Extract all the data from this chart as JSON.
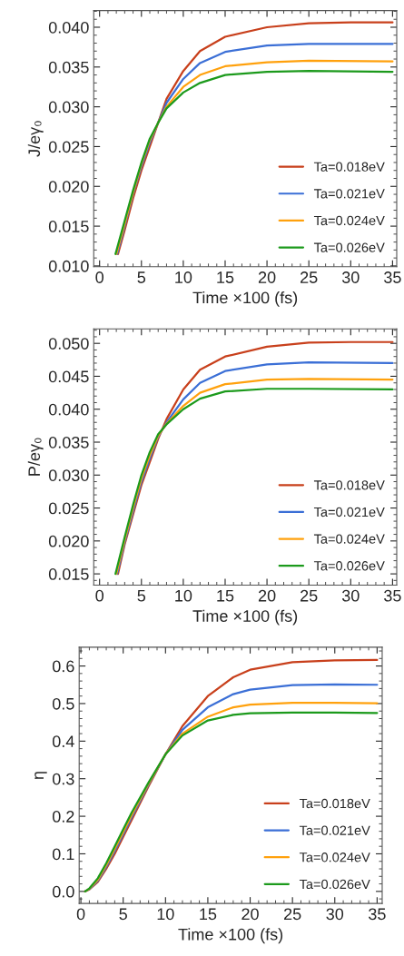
{
  "chart_data": [
    {
      "type": "line",
      "xlabel": "Time ×100 (fs)",
      "ylabel": "J/eγ₀",
      "xlim": [
        -0.7,
        35.5
      ],
      "ylim": [
        0.0099,
        0.0421
      ],
      "xticks": [
        0,
        5,
        10,
        15,
        20,
        25,
        30,
        35
      ],
      "yticks": [
        {
          "value": 0.01,
          "label": "0.010"
        },
        {
          "value": 0.015,
          "label": "0.015"
        },
        {
          "value": 0.02,
          "label": "0.020"
        },
        {
          "value": 0.025,
          "label": "0.025"
        },
        {
          "value": 0.03,
          "label": "0.030"
        },
        {
          "value": 0.035,
          "label": "0.035"
        },
        {
          "value": 0.04,
          "label": "0.040"
        }
      ],
      "legend": "bottom right",
      "grid": false,
      "series": [
        {
          "name": "Ta=0.018eV",
          "color": "#c8401c",
          "x": [
            2.2,
            3,
            4,
            5,
            6,
            7,
            8,
            10,
            12,
            15,
            20,
            25,
            30,
            35
          ],
          "values": [
            0.0115,
            0.0145,
            0.0185,
            0.022,
            0.025,
            0.028,
            0.031,
            0.0345,
            0.037,
            0.0388,
            0.04,
            0.0405,
            0.0406,
            0.0406
          ]
        },
        {
          "name": "Ta=0.021eV",
          "color": "#3b6fd6",
          "x": [
            2.1,
            3,
            4,
            5,
            6,
            7,
            8,
            10,
            12,
            15,
            20,
            25,
            35
          ],
          "values": [
            0.0115,
            0.015,
            0.019,
            0.0225,
            0.0255,
            0.028,
            0.0305,
            0.0335,
            0.0355,
            0.0369,
            0.0377,
            0.0379,
            0.0379
          ]
        },
        {
          "name": "Ta=0.024eV",
          "color": "#ffa10d",
          "x": [
            2.0,
            3,
            4,
            5,
            6,
            7,
            8,
            10,
            12,
            15,
            20,
            25,
            35
          ],
          "values": [
            0.0115,
            0.0153,
            0.0192,
            0.0228,
            0.0258,
            0.028,
            0.03,
            0.0325,
            0.034,
            0.0351,
            0.0356,
            0.0358,
            0.0357
          ]
        },
        {
          "name": "Ta=0.026eV",
          "color": "#1c9a1c",
          "x": [
            1.9,
            3,
            4,
            5,
            6,
            7,
            8,
            10,
            12,
            15,
            20,
            25,
            35
          ],
          "values": [
            0.0115,
            0.0157,
            0.0195,
            0.023,
            0.026,
            0.028,
            0.0298,
            0.0318,
            0.033,
            0.034,
            0.0344,
            0.0345,
            0.0344
          ]
        }
      ]
    },
    {
      "type": "line",
      "xlabel": "Time ×100 (fs)",
      "ylabel": "P/eγ₀",
      "xlim": [
        -0.7,
        35.5
      ],
      "ylim": [
        0.0133,
        0.0522
      ],
      "xticks": [
        0,
        5,
        10,
        15,
        20,
        25,
        30,
        35
      ],
      "yticks": [
        {
          "value": 0.015,
          "label": "0.015"
        },
        {
          "value": 0.02,
          "label": "0.020"
        },
        {
          "value": 0.025,
          "label": "0.025"
        },
        {
          "value": 0.03,
          "label": "0.030"
        },
        {
          "value": 0.035,
          "label": "0.035"
        },
        {
          "value": 0.04,
          "label": "0.040"
        },
        {
          "value": 0.045,
          "label": "0.045"
        },
        {
          "value": 0.05,
          "label": "0.050"
        }
      ],
      "legend": "bottom right",
      "grid": false,
      "series": [
        {
          "name": "Ta=0.018eV",
          "color": "#c8401c",
          "x": [
            2.2,
            3,
            4,
            5,
            6,
            7,
            8,
            10,
            12,
            15,
            20,
            25,
            30,
            35
          ],
          "values": [
            0.015,
            0.0195,
            0.024,
            0.0285,
            0.032,
            0.0355,
            0.0385,
            0.043,
            0.046,
            0.048,
            0.0495,
            0.0501,
            0.0502,
            0.0502
          ]
        },
        {
          "name": "Ta=0.021eV",
          "color": "#3b6fd6",
          "x": [
            2.1,
            3,
            4,
            5,
            6,
            7,
            8,
            10,
            12,
            15,
            20,
            25,
            35
          ],
          "values": [
            0.015,
            0.0198,
            0.0245,
            0.029,
            0.0325,
            0.0358,
            0.038,
            0.0415,
            0.044,
            0.0458,
            0.0468,
            0.0471,
            0.047
          ]
        },
        {
          "name": "Ta=0.024eV",
          "color": "#ffa10d",
          "x": [
            2.0,
            3,
            4,
            5,
            6,
            7,
            8,
            10,
            12,
            15,
            20,
            25,
            35
          ],
          "values": [
            0.015,
            0.0202,
            0.025,
            0.0295,
            0.033,
            0.036,
            0.0378,
            0.0405,
            0.0425,
            0.0438,
            0.0445,
            0.0446,
            0.0445
          ]
        },
        {
          "name": "Ta=0.026eV",
          "color": "#1c9a1c",
          "x": [
            1.9,
            3,
            4,
            5,
            6,
            7,
            8,
            10,
            12,
            15,
            20,
            25,
            35
          ],
          "values": [
            0.015,
            0.0206,
            0.0255,
            0.03,
            0.0335,
            0.0362,
            0.0377,
            0.04,
            0.0416,
            0.0427,
            0.0431,
            0.0431,
            0.043
          ]
        }
      ]
    },
    {
      "type": "line",
      "xlabel": "Time ×100 (fs)",
      "ylabel": "η",
      "xlim": [
        -0.2,
        35.6
      ],
      "ylim": [
        -0.032,
        0.65
      ],
      "xticks": [
        0,
        5,
        10,
        15,
        20,
        25,
        30,
        35
      ],
      "yticks": [
        {
          "value": 0,
          "label": "0.0"
        },
        {
          "value": 0.1,
          "label": "0.1"
        },
        {
          "value": 0.2,
          "label": "0.2"
        },
        {
          "value": 0.3,
          "label": "0.3"
        },
        {
          "value": 0.4,
          "label": "0.4"
        },
        {
          "value": 0.5,
          "label": "0.5"
        },
        {
          "value": 0.6,
          "label": "0.6"
        }
      ],
      "legend": "bottom right",
      "grid": false,
      "series": [
        {
          "name": "Ta=0.018eV",
          "color": "#c8401c",
          "x": [
            0.5,
            1,
            2,
            3,
            4,
            5,
            6,
            8,
            10,
            12,
            15,
            18,
            20,
            25,
            30,
            35
          ],
          "values": [
            0.0,
            0.005,
            0.025,
            0.06,
            0.1,
            0.145,
            0.19,
            0.28,
            0.365,
            0.44,
            0.52,
            0.57,
            0.59,
            0.61,
            0.615,
            0.616
          ]
        },
        {
          "name": "Ta=0.021eV",
          "color": "#3b6fd6",
          "x": [
            0.5,
            1,
            2,
            3,
            4,
            5,
            6,
            8,
            10,
            12,
            15,
            18,
            20,
            25,
            30,
            35
          ],
          "values": [
            0.0,
            0.006,
            0.028,
            0.065,
            0.107,
            0.152,
            0.197,
            0.284,
            0.365,
            0.43,
            0.49,
            0.525,
            0.537,
            0.549,
            0.551,
            0.55
          ]
        },
        {
          "name": "Ta=0.024eV",
          "color": "#ffa10d",
          "x": [
            0.5,
            1,
            2,
            3,
            4,
            5,
            6,
            8,
            10,
            12,
            15,
            18,
            20,
            25,
            30,
            35
          ],
          "values": [
            0.0,
            0.007,
            0.031,
            0.07,
            0.113,
            0.158,
            0.203,
            0.287,
            0.365,
            0.42,
            0.465,
            0.49,
            0.497,
            0.502,
            0.502,
            0.501
          ]
        },
        {
          "name": "Ta=0.026eV",
          "color": "#1c9a1c",
          "x": [
            0.5,
            1,
            2,
            3,
            4,
            5,
            6,
            8,
            10,
            12,
            15,
            18,
            20,
            25,
            30,
            35
          ],
          "values": [
            0.0,
            0.008,
            0.035,
            0.075,
            0.12,
            0.165,
            0.21,
            0.29,
            0.365,
            0.415,
            0.455,
            0.47,
            0.474,
            0.476,
            0.476,
            0.475
          ]
        }
      ]
    }
  ]
}
